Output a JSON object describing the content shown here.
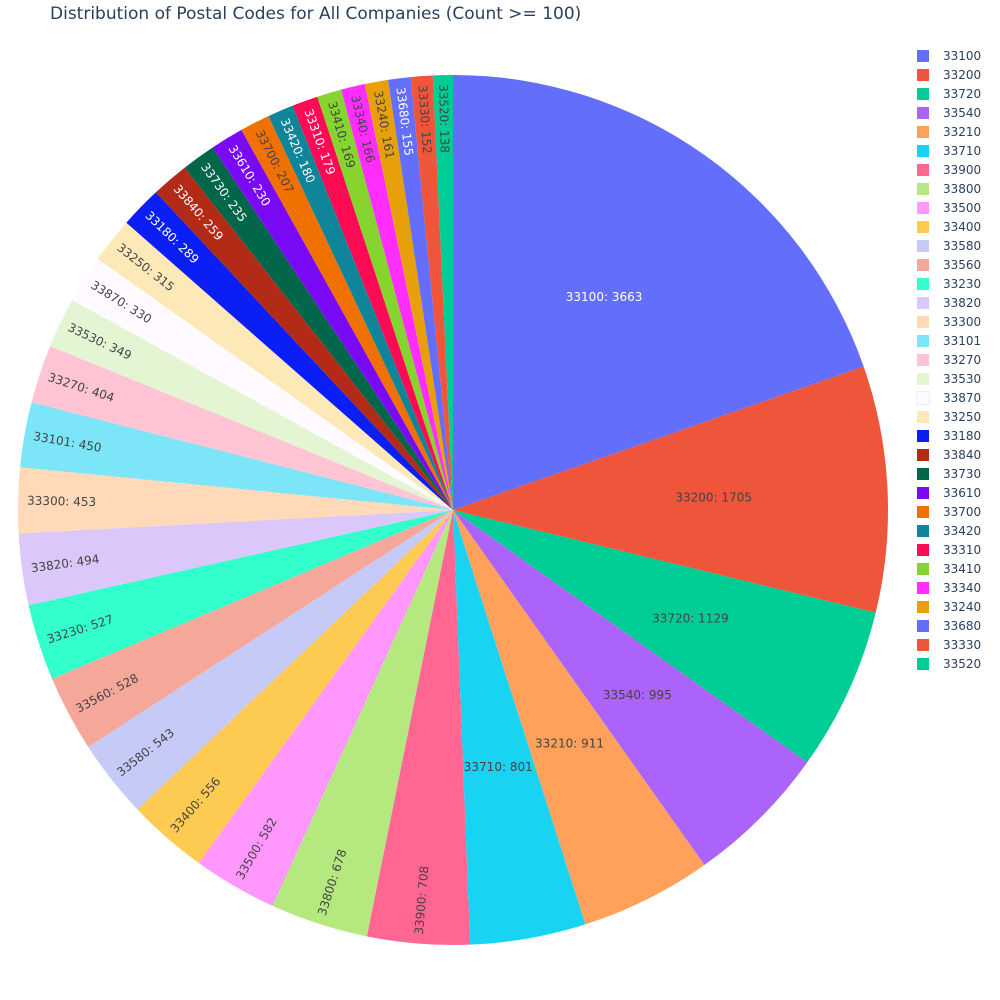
{
  "chart_data": {
    "type": "pie",
    "title": "Distribution of Postal Codes for All Companies (Count >= 100)",
    "legend_position": "right",
    "slices": [
      {
        "label": "33100",
        "value": 3663,
        "color": "#636efa"
      },
      {
        "label": "33200",
        "value": 1705,
        "color": "#ef553b"
      },
      {
        "label": "33720",
        "value": 1129,
        "color": "#00cc96"
      },
      {
        "label": "33540",
        "value": 995,
        "color": "#ab63fa"
      },
      {
        "label": "33210",
        "value": 911,
        "color": "#ffa15a"
      },
      {
        "label": "33710",
        "value": 801,
        "color": "#19d3f3"
      },
      {
        "label": "33900",
        "value": 708,
        "color": "#ff6692"
      },
      {
        "label": "33800",
        "value": 678,
        "color": "#b6e880"
      },
      {
        "label": "33500",
        "value": 582,
        "color": "#ff97ff"
      },
      {
        "label": "33400",
        "value": 556,
        "color": "#fecb52"
      },
      {
        "label": "33580",
        "value": 543,
        "color": "#c6caf7"
      },
      {
        "label": "33560",
        "value": 528,
        "color": "#f5a89a"
      },
      {
        "label": "33230",
        "value": 527,
        "color": "#33ffcc"
      },
      {
        "label": "33820",
        "value": 494,
        "color": "#dcc7fa"
      },
      {
        "label": "33300",
        "value": 453,
        "color": "#ffd9b8"
      },
      {
        "label": "33101",
        "value": 450,
        "color": "#7de5f8"
      },
      {
        "label": "33270",
        "value": 404,
        "color": "#ffc5d5"
      },
      {
        "label": "33530",
        "value": 349,
        "color": "#e4f5d4"
      },
      {
        "label": "33870",
        "value": 330,
        "color": "#fffaff"
      },
      {
        "label": "33250",
        "value": 315,
        "color": "#fde8b8"
      },
      {
        "label": "33180",
        "value": 289,
        "color": "#0a1ef5"
      },
      {
        "label": "33840",
        "value": 259,
        "color": "#b32a16"
      },
      {
        "label": "33730",
        "value": 235,
        "color": "#02664b"
      },
      {
        "label": "33610",
        "value": 230,
        "color": "#7a0af5"
      },
      {
        "label": "33700",
        "value": 207,
        "color": "#f07000"
      },
      {
        "label": "33420",
        "value": 180,
        "color": "#0e8599"
      },
      {
        "label": "33310",
        "value": 179,
        "color": "#ff0a54"
      },
      {
        "label": "33410",
        "value": 169,
        "color": "#86d52e"
      },
      {
        "label": "33340",
        "value": 166,
        "color": "#ff2eff"
      },
      {
        "label": "33240",
        "value": 161,
        "color": "#e8a00a"
      },
      {
        "label": "33680",
        "value": 155,
        "color": "#636efa"
      },
      {
        "label": "33330",
        "value": 152,
        "color": "#ef553b"
      },
      {
        "label": "33520",
        "value": 138,
        "color": "#00cc96"
      }
    ]
  }
}
